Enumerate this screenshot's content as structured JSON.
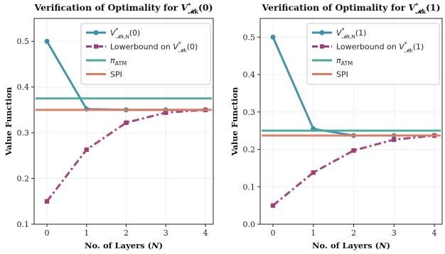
{
  "colors": {
    "v_star": "#3d8fa9",
    "lowerbound": "#9e3f78",
    "pi_atm": "#4aa99a",
    "spi": "#e07a5f"
  },
  "chart_data": [
    {
      "type": "line",
      "title": {
        "prefix": "Verification of Optimality for ",
        "V": "V",
        "sup": "*",
        "sub": "𝓜k",
        "arg": "(0)"
      },
      "xlabel": {
        "text": "No. of Layers (",
        "var": "N",
        "close": ")"
      },
      "ylabel": "Value Function",
      "x": [
        0,
        1,
        2,
        3,
        4
      ],
      "xticks": [
        "0",
        "1",
        "2",
        "3",
        "4"
      ],
      "ylim": [
        0.1,
        0.55
      ],
      "yticks": [
        "0.1",
        "0.2",
        "0.3",
        "0.4",
        "0.5"
      ],
      "grid": true,
      "legend_position": "top-right",
      "series": [
        {
          "key": "v_star",
          "style": "solid-circle",
          "values": [
            0.5,
            0.352,
            0.35,
            0.35,
            0.35
          ],
          "legend": {
            "V": "V",
            "sup": "*",
            "sub": "𝓜k,N",
            "arg": "(0)"
          }
        },
        {
          "key": "lowerbound",
          "style": "dashdot-square",
          "values": [
            0.15,
            0.263,
            0.322,
            0.344,
            0.35
          ],
          "legend": {
            "pre": "Lowerbound on ",
            "V": "V",
            "sup": "*",
            "sub": "𝓜k",
            "arg": "(0)"
          }
        },
        {
          "key": "pi_atm",
          "style": "hline",
          "values": [
            0.375,
            0.375,
            0.375,
            0.375,
            0.375
          ],
          "legend": {
            "pi": "π",
            "sub": "ATM"
          }
        },
        {
          "key": "spi",
          "style": "hline",
          "values": [
            0.35,
            0.35,
            0.35,
            0.35,
            0.35
          ],
          "legend": {
            "text": "SPI"
          }
        }
      ]
    },
    {
      "type": "line",
      "title": {
        "prefix": "Verification of Optimality for ",
        "V": "V",
        "sup": "*",
        "sub": "𝓜k",
        "arg": "(1)"
      },
      "xlabel": {
        "text": "No. of Layers (",
        "var": "N",
        "close": ")"
      },
      "ylabel": "Value Function",
      "x": [
        0,
        1,
        2,
        3,
        4
      ],
      "xticks": [
        "0",
        "1",
        "2",
        "3",
        "4"
      ],
      "ylim": [
        0.0,
        0.55
      ],
      "yticks": [
        "0.0",
        "0.1",
        "0.2",
        "0.3",
        "0.4",
        "0.5"
      ],
      "grid": true,
      "legend_position": "top-right",
      "series": [
        {
          "key": "v_star",
          "style": "solid-circle",
          "values": [
            0.5,
            0.255,
            0.237,
            0.237,
            0.237
          ],
          "legend": {
            "V": "V",
            "sup": "*",
            "sub": "𝓜k,N",
            "arg": "(1)"
          }
        },
        {
          "key": "lowerbound",
          "style": "dashdot-square",
          "values": [
            0.05,
            0.138,
            0.197,
            0.226,
            0.237
          ],
          "legend": {
            "pre": "Lowerbound on ",
            "V": "V",
            "sup": "*",
            "sub": "𝓜k",
            "arg": "(1)"
          }
        },
        {
          "key": "pi_atm",
          "style": "hline",
          "values": [
            0.25,
            0.25,
            0.25,
            0.25,
            0.25
          ],
          "legend": {
            "pi": "π",
            "sub": "ATM"
          }
        },
        {
          "key": "spi",
          "style": "hline",
          "values": [
            0.237,
            0.237,
            0.237,
            0.237,
            0.237
          ],
          "legend": {
            "text": "SPI"
          }
        }
      ]
    }
  ]
}
